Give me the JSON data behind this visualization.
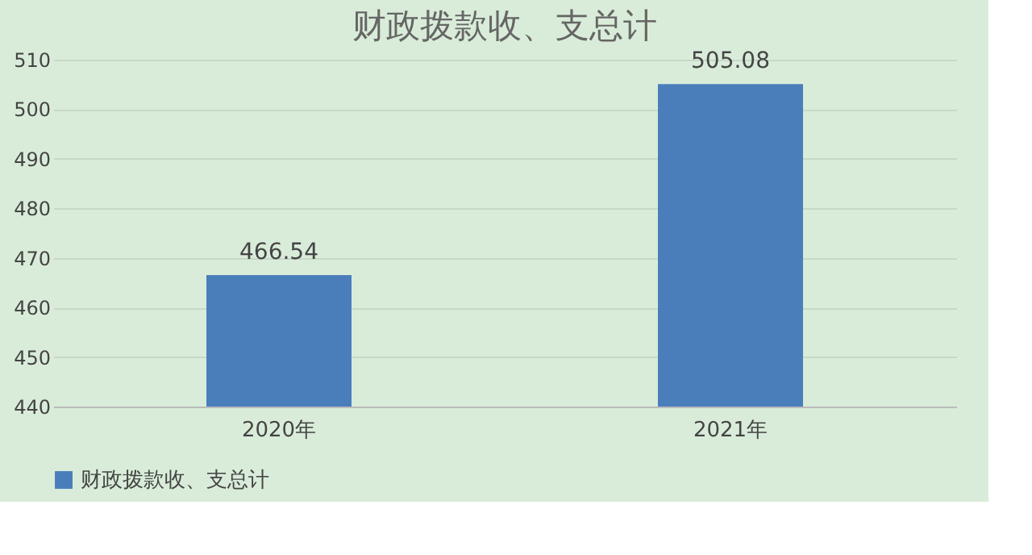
{
  "chart_data": {
    "type": "bar",
    "title": "财政拨款收、支总计",
    "categories": [
      "2020年",
      "2021年"
    ],
    "series": [
      {
        "name": "财政拨款收、支总计",
        "color": "#4a7ebb",
        "values": [
          466.54,
          505.08
        ]
      }
    ],
    "ylim": [
      440,
      510
    ],
    "yticks": [
      440,
      450,
      460,
      470,
      480,
      490,
      500,
      510
    ],
    "grid": "y",
    "legend": "bottom",
    "data_labels": true
  }
}
